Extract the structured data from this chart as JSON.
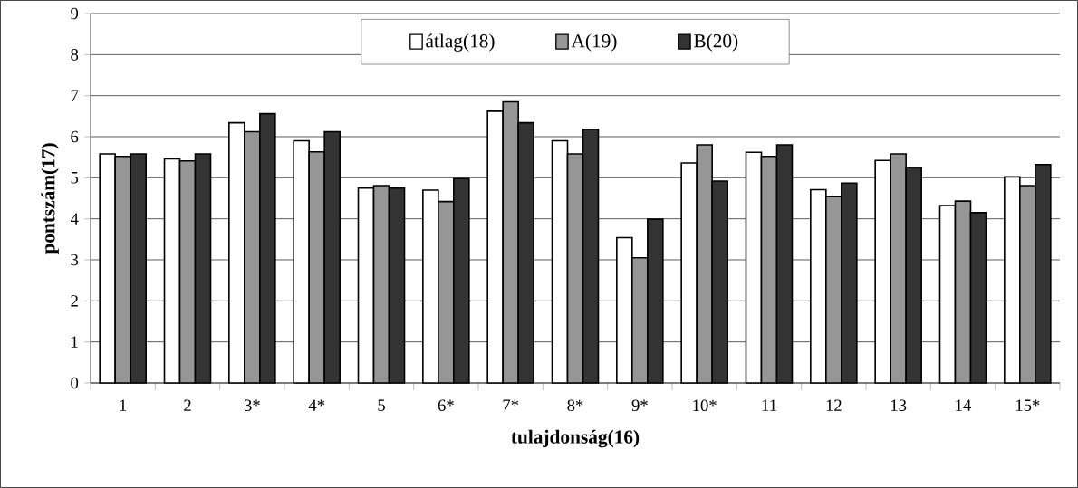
{
  "chart_data": {
    "type": "bar",
    "xlabel": "tulajdonság(16)",
    "ylabel": "pontszám(17)",
    "categories": [
      "1",
      "2",
      "3*",
      "4*",
      "5",
      "6*",
      "7*",
      "8*",
      "9*",
      "10*",
      "11",
      "12",
      "13",
      "14",
      "15*"
    ],
    "series": [
      {
        "name": "átlag(18)",
        "color": "#ffffff",
        "values": [
          5.58,
          5.46,
          6.34,
          5.9,
          4.75,
          4.7,
          6.62,
          5.9,
          3.54,
          5.36,
          5.62,
          4.71,
          5.42,
          4.32,
          5.02
        ]
      },
      {
        "name": "A(19)",
        "color": "#969696",
        "values": [
          5.52,
          5.41,
          6.12,
          5.63,
          4.81,
          4.42,
          6.85,
          5.58,
          3.05,
          5.8,
          5.52,
          4.54,
          5.58,
          4.43,
          4.81
        ]
      },
      {
        "name": "B(20)",
        "color": "#333333",
        "values": [
          5.58,
          5.58,
          6.56,
          6.12,
          4.75,
          4.98,
          6.34,
          6.18,
          3.99,
          4.92,
          5.8,
          4.87,
          5.25,
          4.15,
          5.32
        ]
      }
    ],
    "ylim": [
      0,
      9
    ],
    "yticks": [
      0,
      1,
      2,
      3,
      4,
      5,
      6,
      7,
      8,
      9
    ],
    "grid": "y",
    "legend": "top"
  }
}
